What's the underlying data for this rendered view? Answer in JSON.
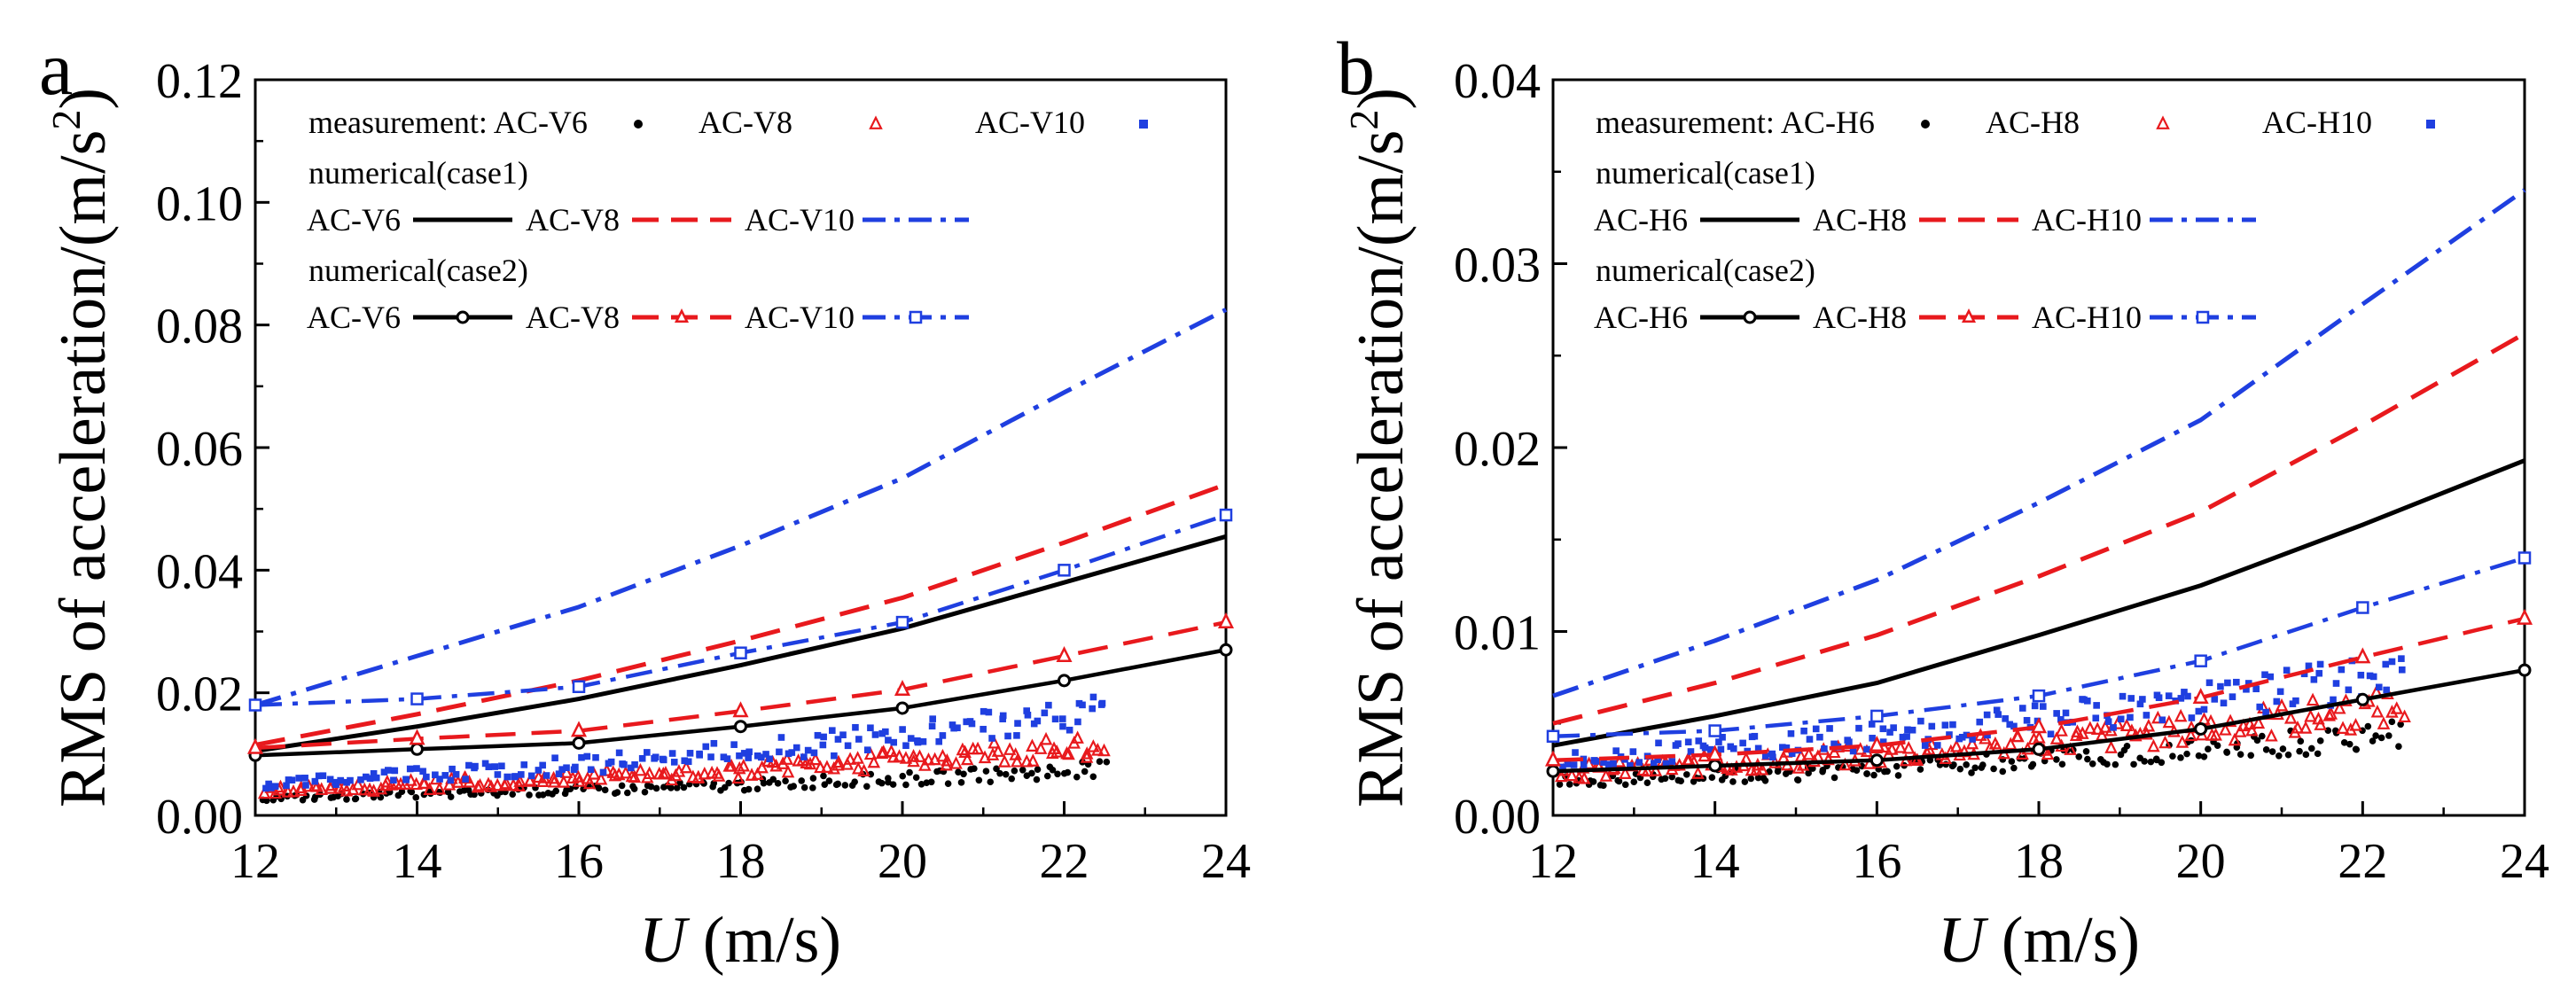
{
  "colors": {
    "black": "#000000",
    "red": "#e8191d",
    "blue": "#1f3fe0"
  },
  "chart_data": [
    {
      "type": "line",
      "panel": "a",
      "xlabel_italic": "U",
      "xlabel_rest": " (m/s)",
      "ylabel_main": "RMS of acceleration/(m/s",
      "ylabel_sup": "2",
      "ylabel_close": ")",
      "xlim": [
        12,
        24
      ],
      "ylim": [
        0,
        0.12
      ],
      "xticks": [
        12,
        14,
        16,
        18,
        20,
        22,
        24
      ],
      "xtick_labels": [
        "12",
        "14",
        "16",
        "18",
        "20",
        "22",
        "24"
      ],
      "yticks": [
        0,
        0.02,
        0.04,
        0.06,
        0.08,
        0.1,
        0.12
      ],
      "ytick_labels": [
        "0.00",
        "0.02",
        "0.04",
        "0.06",
        "0.08",
        "0.10",
        "0.12"
      ],
      "legend": {
        "measurement_label": "measurement:",
        "case1_label": "numerical(case1)",
        "case2_label": "numerical(case2)",
        "names": [
          "AC-V6",
          "AC-V8",
          "AC-V10"
        ]
      },
      "measurement": [
        {
          "name": "AC-V6",
          "color": "black",
          "marker": "dot",
          "start": 0.0028,
          "growth": 0.095,
          "x_max": 22.5
        },
        {
          "name": "AC-V8",
          "color": "red",
          "marker": "triangle",
          "start": 0.004,
          "growth": 0.1,
          "x_max": 22.5
        },
        {
          "name": "AC-V10",
          "color": "blue",
          "marker": "square",
          "start": 0.0052,
          "growth": 0.115,
          "x_max": 22.5
        }
      ],
      "series": [
        {
          "name": "AC-V6",
          "case": 1,
          "color": "black",
          "style": "solid",
          "x": [
            12,
            14,
            16,
            18,
            20,
            22,
            24
          ],
          "values": [
            0.0105,
            0.0145,
            0.019,
            0.0245,
            0.0305,
            0.038,
            0.0455
          ]
        },
        {
          "name": "AC-V8",
          "case": 1,
          "color": "red",
          "style": "dash",
          "x": [
            12,
            14,
            16,
            18,
            20,
            22,
            24
          ],
          "values": [
            0.0115,
            0.0165,
            0.022,
            0.0285,
            0.0355,
            0.0445,
            0.054
          ]
        },
        {
          "name": "AC-V10",
          "case": 1,
          "color": "blue",
          "style": "dashdot",
          "x": [
            12,
            14,
            16,
            18,
            20,
            22,
            24
          ],
          "values": [
            0.018,
            0.026,
            0.034,
            0.044,
            0.055,
            0.069,
            0.0825
          ]
        },
        {
          "name": "AC-V6",
          "case": 2,
          "color": "black",
          "style": "solid",
          "marker": "circle",
          "x": [
            12,
            14,
            16,
            18,
            20,
            22,
            24
          ],
          "values": [
            0.0098,
            0.0108,
            0.0118,
            0.0145,
            0.0175,
            0.022,
            0.027
          ]
        },
        {
          "name": "AC-V8",
          "case": 2,
          "color": "red",
          "style": "dash",
          "marker": "triangle",
          "x": [
            12,
            14,
            16,
            18,
            20,
            22,
            24
          ],
          "values": [
            0.011,
            0.0125,
            0.0138,
            0.017,
            0.0205,
            0.026,
            0.0315
          ]
        },
        {
          "name": "AC-V10",
          "case": 2,
          "color": "blue",
          "style": "dashdot",
          "marker": "square",
          "x": [
            12,
            14,
            16,
            18,
            20,
            22,
            24
          ],
          "values": [
            0.018,
            0.019,
            0.021,
            0.0265,
            0.0315,
            0.04,
            0.049
          ]
        }
      ]
    },
    {
      "type": "line",
      "panel": "b",
      "xlabel_italic": "U",
      "xlabel_rest": " (m/s)",
      "ylabel_main": "RMS of acceleration/(m/s",
      "ylabel_sup": "2",
      "ylabel_close": ")",
      "xlim": [
        12,
        24
      ],
      "ylim": [
        0,
        0.04
      ],
      "xticks": [
        12,
        14,
        16,
        18,
        20,
        22,
        24
      ],
      "xtick_labels": [
        "12",
        "14",
        "16",
        "18",
        "20",
        "22",
        "24"
      ],
      "yticks": [
        0,
        0.01,
        0.02,
        0.03,
        0.04
      ],
      "ytick_labels": [
        "0.00",
        "0.01",
        "0.02",
        "0.03",
        "0.04"
      ],
      "legend": {
        "measurement_label": "measurement:",
        "case1_label": "numerical(case1)",
        "case2_label": "numerical(case2)",
        "names": [
          "AC-H6",
          "AC-H8",
          "AC-H10"
        ]
      },
      "measurement": [
        {
          "name": "AC-H6",
          "color": "black",
          "marker": "dot",
          "start": 0.0018,
          "growth": 0.085,
          "x_max": 22.5
        },
        {
          "name": "AC-H8",
          "color": "red",
          "marker": "triangle",
          "start": 0.0023,
          "growth": 0.09,
          "x_max": 22.5
        },
        {
          "name": "AC-H10",
          "color": "blue",
          "marker": "square",
          "start": 0.003,
          "growth": 0.09,
          "x_max": 22.5
        }
      ],
      "series": [
        {
          "name": "AC-H6",
          "case": 1,
          "color": "black",
          "style": "solid",
          "x": [
            12,
            14,
            16,
            18,
            20,
            22,
            24
          ],
          "values": [
            0.0038,
            0.0054,
            0.0072,
            0.0098,
            0.0125,
            0.0158,
            0.0193
          ]
        },
        {
          "name": "AC-H8",
          "case": 1,
          "color": "red",
          "style": "dash",
          "x": [
            12,
            14,
            16,
            18,
            20,
            22,
            24
          ],
          "values": [
            0.005,
            0.0072,
            0.0098,
            0.013,
            0.0165,
            0.0212,
            0.0262
          ]
        },
        {
          "name": "AC-H10",
          "case": 1,
          "color": "blue",
          "style": "dashdot",
          "x": [
            12,
            14,
            16,
            18,
            20,
            22,
            24
          ],
          "values": [
            0.0065,
            0.0095,
            0.0128,
            0.017,
            0.0215,
            0.0278,
            0.034
          ]
        },
        {
          "name": "AC-H6",
          "case": 2,
          "color": "black",
          "style": "solid",
          "marker": "circle",
          "x": [
            12,
            14,
            16,
            18,
            20,
            22,
            24
          ],
          "values": [
            0.0024,
            0.0027,
            0.003,
            0.0036,
            0.0047,
            0.0063,
            0.0079
          ]
        },
        {
          "name": "AC-H8",
          "case": 2,
          "color": "red",
          "style": "dash",
          "marker": "triangle",
          "x": [
            12,
            14,
            16,
            18,
            20,
            22,
            24
          ],
          "values": [
            0.003,
            0.0033,
            0.0038,
            0.0048,
            0.0064,
            0.0086,
            0.0107
          ]
        },
        {
          "name": "AC-H10",
          "case": 2,
          "color": "blue",
          "style": "dashdot",
          "marker": "square",
          "x": [
            12,
            14,
            16,
            18,
            20,
            22,
            24
          ],
          "values": [
            0.0043,
            0.0046,
            0.0054,
            0.0065,
            0.0084,
            0.0113,
            0.014
          ]
        }
      ]
    }
  ]
}
